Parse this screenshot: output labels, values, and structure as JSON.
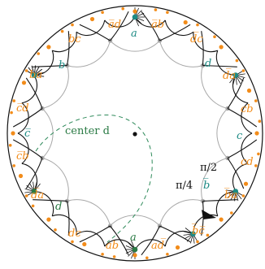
{
  "diagram": {
    "center_caption": "center d",
    "edge_labels": [
      {
        "text": "bc",
        "color": "orange"
      },
      {
        "text": "a̅d",
        "color": "orange"
      },
      {
        "text": "a",
        "color": "teal"
      },
      {
        "text": "a̅b",
        "color": "orange"
      },
      {
        "text": "d̅c",
        "color": "orange"
      },
      {
        "text": "d",
        "color": "teal"
      },
      {
        "text": "b",
        "color": "teal"
      },
      {
        "text": "ba",
        "color": "orange"
      },
      {
        "text": "d̅a",
        "color": "orange"
      },
      {
        "text": "c̅d",
        "color": "orange"
      },
      {
        "text": "cb",
        "color": "orange"
      },
      {
        "text": "c̅",
        "color": "teal"
      },
      {
        "text": "c",
        "color": "teal"
      },
      {
        "text": "c̅b",
        "color": "orange"
      },
      {
        "text": "cd",
        "color": "orange"
      },
      {
        "text": "d̅a",
        "color": "orange"
      },
      {
        "text": "b̅a",
        "color": "orange"
      },
      {
        "text": "d",
        "color": "green"
      },
      {
        "text": "b̅",
        "color": "teal"
      },
      {
        "text": "dc",
        "color": "orange"
      },
      {
        "text": "ab",
        "color": "orange"
      },
      {
        "text": "a",
        "color": "green"
      },
      {
        "text": "ad̅",
        "color": "orange"
      },
      {
        "text": "b̅c̅",
        "color": "orange"
      }
    ],
    "angle_labels": [
      "π/2",
      "π/4"
    ],
    "colors": {
      "orange": "#f28c1a",
      "teal": "#1d8a84",
      "green": "#2a7a44",
      "gray": "#a8a8a8",
      "dashed": "#2e8a5a",
      "black": "#111111"
    }
  }
}
